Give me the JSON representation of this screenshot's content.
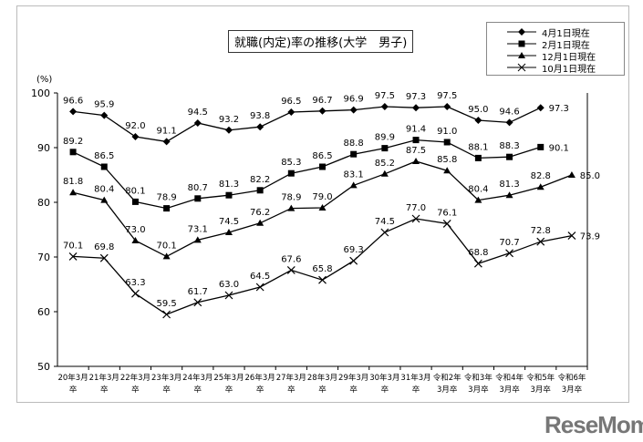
{
  "chart_data": {
    "type": "line",
    "title": "就職(内定)率の推移(大学　男子)",
    "ylabel": "(%)",
    "ylim": [
      50,
      100
    ],
    "yticks": [
      50,
      60,
      70,
      80,
      90,
      100
    ],
    "grid": false,
    "legend_position": "top-right",
    "categories": [
      [
        "20年3月",
        "卒"
      ],
      [
        "21年3月",
        "卒"
      ],
      [
        "22年3月",
        "卒"
      ],
      [
        "23年3月",
        "卒"
      ],
      [
        "24年3月",
        "卒"
      ],
      [
        "25年3月",
        "卒"
      ],
      [
        "26年3月",
        "卒"
      ],
      [
        "27年3月",
        "卒"
      ],
      [
        "28年3月",
        "卒"
      ],
      [
        "29年3月",
        "卒"
      ],
      [
        "30年3月",
        "卒"
      ],
      [
        "31年3月",
        "卒"
      ],
      [
        "令和2年",
        "3月卒"
      ],
      [
        "令和3年",
        "3月卒"
      ],
      [
        "令和4年",
        "3月卒"
      ],
      [
        "令和5年",
        "3月卒"
      ],
      [
        "令和6年",
        "3月卒"
      ]
    ],
    "series": [
      {
        "name": "4月1日現在",
        "marker": "diamond",
        "values": [
          96.6,
          95.9,
          92.0,
          91.1,
          94.5,
          93.2,
          93.8,
          96.5,
          96.7,
          96.9,
          97.5,
          97.3,
          97.5,
          95.0,
          94.6,
          97.3,
          null
        ]
      },
      {
        "name": "2月1日現在",
        "marker": "square",
        "values": [
          89.2,
          86.5,
          80.1,
          78.9,
          80.7,
          81.3,
          82.2,
          85.3,
          86.5,
          88.8,
          89.9,
          91.4,
          91.0,
          88.1,
          88.3,
          90.1,
          null
        ]
      },
      {
        "name": "12月1日現在",
        "marker": "triangle",
        "values": [
          81.8,
          80.4,
          73.0,
          70.1,
          73.1,
          74.5,
          76.2,
          78.9,
          79.0,
          83.1,
          85.2,
          87.5,
          85.8,
          80.4,
          81.3,
          82.8,
          85.0
        ]
      },
      {
        "name": "10月1日現在",
        "marker": "cross",
        "values": [
          70.1,
          69.8,
          63.3,
          59.5,
          61.7,
          63.0,
          64.5,
          67.6,
          65.8,
          69.3,
          74.5,
          77.0,
          76.1,
          68.8,
          70.7,
          72.8,
          73.9
        ]
      }
    ]
  },
  "logo": "ReseMom"
}
